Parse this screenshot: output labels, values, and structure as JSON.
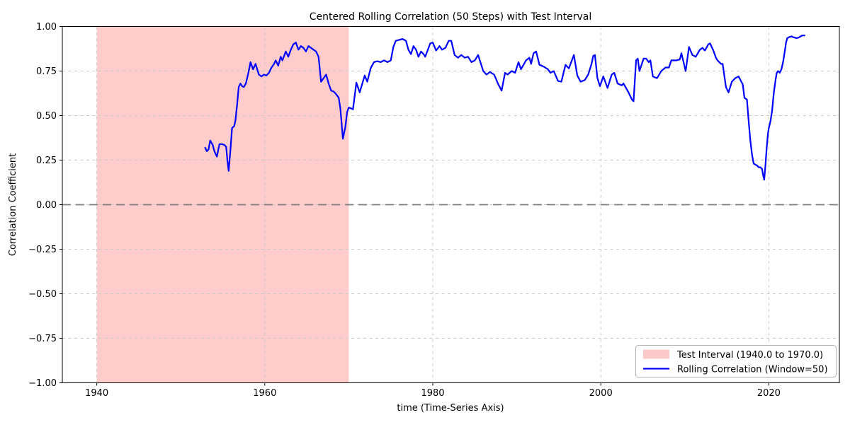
{
  "chart_data": {
    "type": "line",
    "title": "Centered Rolling Correlation (50 Steps) with Test Interval",
    "xlabel": "time (Time-Series Axis)",
    "ylabel": "Correlation Coefficient",
    "xlim": [
      1935.9,
      2028.4
    ],
    "ylim": [
      -1.0,
      1.0
    ],
    "xticks": [
      1940,
      1960,
      1980,
      2000,
      2020
    ],
    "xtick_labels": [
      "1940",
      "1960",
      "1980",
      "2000",
      "2020"
    ],
    "yticks": [
      1.0,
      0.75,
      0.5,
      0.25,
      0.0,
      -0.25,
      -0.5,
      -0.75,
      -1.0
    ],
    "ytick_labels": [
      "1.00",
      "0.75",
      "0.50",
      "0.25",
      "0.00",
      "−0.25",
      "−0.50",
      "−0.75",
      "−1.00"
    ],
    "grid": {
      "visible": true,
      "style": "dashed",
      "color": "#c9c9c9"
    },
    "zero_line": {
      "value": 0.0,
      "color": "#7f7f7f",
      "style": "dashed"
    },
    "test_interval_span": {
      "start": 1940.0,
      "end": 1970.0,
      "color": "#ff0000",
      "alpha": 0.2
    },
    "legend": {
      "position": "lower right",
      "entries": [
        {
          "label": "Test Interval (1940.0 to 1970.0)",
          "type": "patch",
          "color": "#fbc9c9"
        },
        {
          "label": "Rolling Correlation (Window=50)",
          "type": "line",
          "color": "#0000ff"
        }
      ]
    },
    "series": [
      {
        "name": "Rolling Correlation (Window=50)",
        "color": "#0000ff",
        "points": [
          [
            1952.9,
            0.32
          ],
          [
            1953.1,
            0.3
          ],
          [
            1953.3,
            0.31
          ],
          [
            1953.5,
            0.36
          ],
          [
            1953.8,
            0.335
          ],
          [
            1954.0,
            0.3
          ],
          [
            1954.3,
            0.27
          ],
          [
            1954.6,
            0.34
          ],
          [
            1954.9,
            0.34
          ],
          [
            1955.2,
            0.335
          ],
          [
            1955.4,
            0.325
          ],
          [
            1955.55,
            0.25
          ],
          [
            1955.7,
            0.19
          ],
          [
            1955.9,
            0.3
          ],
          [
            1956.1,
            0.43
          ],
          [
            1956.35,
            0.44
          ],
          [
            1956.5,
            0.47
          ],
          [
            1956.7,
            0.56
          ],
          [
            1956.9,
            0.66
          ],
          [
            1957.1,
            0.68
          ],
          [
            1957.3,
            0.665
          ],
          [
            1957.5,
            0.66
          ],
          [
            1957.75,
            0.68
          ],
          [
            1958.0,
            0.73
          ],
          [
            1958.3,
            0.8
          ],
          [
            1958.6,
            0.76
          ],
          [
            1958.9,
            0.79
          ],
          [
            1959.1,
            0.76
          ],
          [
            1959.3,
            0.73
          ],
          [
            1959.6,
            0.72
          ],
          [
            1959.9,
            0.73
          ],
          [
            1960.2,
            0.725
          ],
          [
            1960.5,
            0.74
          ],
          [
            1960.8,
            0.77
          ],
          [
            1961.1,
            0.79
          ],
          [
            1961.3,
            0.81
          ],
          [
            1961.6,
            0.78
          ],
          [
            1961.9,
            0.83
          ],
          [
            1962.1,
            0.81
          ],
          [
            1962.5,
            0.86
          ],
          [
            1962.8,
            0.83
          ],
          [
            1963.1,
            0.87
          ],
          [
            1963.4,
            0.9
          ],
          [
            1963.7,
            0.91
          ],
          [
            1964.0,
            0.87
          ],
          [
            1964.3,
            0.89
          ],
          [
            1964.6,
            0.88
          ],
          [
            1964.9,
            0.86
          ],
          [
            1965.2,
            0.89
          ],
          [
            1965.5,
            0.88
          ],
          [
            1965.8,
            0.87
          ],
          [
            1966.1,
            0.86
          ],
          [
            1966.4,
            0.83
          ],
          [
            1966.7,
            0.69
          ],
          [
            1967.0,
            0.71
          ],
          [
            1967.3,
            0.73
          ],
          [
            1967.6,
            0.68
          ],
          [
            1967.9,
            0.64
          ],
          [
            1968.2,
            0.635
          ],
          [
            1968.5,
            0.62
          ],
          [
            1968.8,
            0.6
          ],
          [
            1969.0,
            0.54
          ],
          [
            1969.3,
            0.37
          ],
          [
            1969.6,
            0.44
          ],
          [
            1969.8,
            0.52
          ],
          [
            1970.0,
            0.545
          ],
          [
            1970.3,
            0.54
          ],
          [
            1970.5,
            0.535
          ],
          [
            1970.9,
            0.685
          ],
          [
            1971.3,
            0.63
          ],
          [
            1971.9,
            0.725
          ],
          [
            1972.2,
            0.69
          ],
          [
            1972.6,
            0.765
          ],
          [
            1973.0,
            0.8
          ],
          [
            1973.4,
            0.805
          ],
          [
            1973.8,
            0.8
          ],
          [
            1974.2,
            0.81
          ],
          [
            1974.6,
            0.8
          ],
          [
            1975.0,
            0.81
          ],
          [
            1975.3,
            0.885
          ],
          [
            1975.6,
            0.92
          ],
          [
            1976.0,
            0.925
          ],
          [
            1976.4,
            0.93
          ],
          [
            1976.8,
            0.92
          ],
          [
            1977.1,
            0.87
          ],
          [
            1977.4,
            0.845
          ],
          [
            1977.7,
            0.89
          ],
          [
            1978.0,
            0.87
          ],
          [
            1978.3,
            0.83
          ],
          [
            1978.6,
            0.86
          ],
          [
            1978.9,
            0.845
          ],
          [
            1979.1,
            0.83
          ],
          [
            1979.7,
            0.905
          ],
          [
            1980.0,
            0.91
          ],
          [
            1980.4,
            0.865
          ],
          [
            1980.8,
            0.89
          ],
          [
            1981.1,
            0.87
          ],
          [
            1981.5,
            0.88
          ],
          [
            1981.9,
            0.92
          ],
          [
            1982.2,
            0.92
          ],
          [
            1982.6,
            0.84
          ],
          [
            1983.0,
            0.825
          ],
          [
            1983.4,
            0.84
          ],
          [
            1983.8,
            0.825
          ],
          [
            1984.2,
            0.83
          ],
          [
            1984.6,
            0.8
          ],
          [
            1985.0,
            0.81
          ],
          [
            1985.4,
            0.84
          ],
          [
            1986.0,
            0.75
          ],
          [
            1986.4,
            0.73
          ],
          [
            1986.8,
            0.745
          ],
          [
            1987.3,
            0.73
          ],
          [
            1987.8,
            0.675
          ],
          [
            1988.2,
            0.64
          ],
          [
            1988.6,
            0.74
          ],
          [
            1988.9,
            0.73
          ],
          [
            1989.4,
            0.75
          ],
          [
            1989.8,
            0.74
          ],
          [
            1990.2,
            0.8
          ],
          [
            1990.5,
            0.76
          ],
          [
            1991.1,
            0.81
          ],
          [
            1991.5,
            0.825
          ],
          [
            1991.7,
            0.79
          ],
          [
            1992.0,
            0.85
          ],
          [
            1992.3,
            0.86
          ],
          [
            1992.7,
            0.785
          ],
          [
            1993.2,
            0.775
          ],
          [
            1993.7,
            0.76
          ],
          [
            1994.0,
            0.74
          ],
          [
            1994.4,
            0.75
          ],
          [
            1994.9,
            0.695
          ],
          [
            1995.3,
            0.69
          ],
          [
            1995.8,
            0.785
          ],
          [
            1996.2,
            0.765
          ],
          [
            1996.8,
            0.84
          ],
          [
            1997.2,
            0.725
          ],
          [
            1997.6,
            0.69
          ],
          [
            1998.1,
            0.7
          ],
          [
            1998.5,
            0.73
          ],
          [
            1998.9,
            0.79
          ],
          [
            1999.1,
            0.835
          ],
          [
            1999.3,
            0.84
          ],
          [
            1999.6,
            0.71
          ],
          [
            1999.9,
            0.665
          ],
          [
            2000.3,
            0.72
          ],
          [
            2000.8,
            0.655
          ],
          [
            2001.3,
            0.73
          ],
          [
            2001.6,
            0.74
          ],
          [
            2002.0,
            0.68
          ],
          [
            2002.5,
            0.67
          ],
          [
            2002.7,
            0.68
          ],
          [
            2003.0,
            0.655
          ],
          [
            2003.3,
            0.63
          ],
          [
            2003.7,
            0.59
          ],
          [
            2003.9,
            0.58
          ],
          [
            2004.2,
            0.81
          ],
          [
            2004.4,
            0.82
          ],
          [
            2004.6,
            0.75
          ],
          [
            2005.1,
            0.82
          ],
          [
            2005.4,
            0.82
          ],
          [
            2005.7,
            0.8
          ],
          [
            2005.9,
            0.81
          ],
          [
            2006.2,
            0.72
          ],
          [
            2006.7,
            0.71
          ],
          [
            2007.2,
            0.75
          ],
          [
            2007.7,
            0.77
          ],
          [
            2008.1,
            0.77
          ],
          [
            2008.4,
            0.81
          ],
          [
            2009.0,
            0.81
          ],
          [
            2009.4,
            0.815
          ],
          [
            2009.6,
            0.85
          ],
          [
            2010.1,
            0.75
          ],
          [
            2010.5,
            0.885
          ],
          [
            2010.9,
            0.84
          ],
          [
            2011.3,
            0.83
          ],
          [
            2011.8,
            0.87
          ],
          [
            2012.1,
            0.88
          ],
          [
            2012.4,
            0.865
          ],
          [
            2012.8,
            0.9
          ],
          [
            2013.0,
            0.905
          ],
          [
            2013.4,
            0.865
          ],
          [
            2013.7,
            0.825
          ],
          [
            2013.9,
            0.81
          ],
          [
            2014.3,
            0.79
          ],
          [
            2014.5,
            0.79
          ],
          [
            2014.9,
            0.66
          ],
          [
            2015.2,
            0.63
          ],
          [
            2015.6,
            0.69
          ],
          [
            2016.0,
            0.71
          ],
          [
            2016.4,
            0.72
          ],
          [
            2016.9,
            0.675
          ],
          [
            2017.1,
            0.6
          ],
          [
            2017.4,
            0.59
          ],
          [
            2017.6,
            0.47
          ],
          [
            2017.8,
            0.36
          ],
          [
            2018.0,
            0.28
          ],
          [
            2018.2,
            0.23
          ],
          [
            2018.4,
            0.225
          ],
          [
            2018.6,
            0.22
          ],
          [
            2018.8,
            0.21
          ],
          [
            2019.0,
            0.21
          ],
          [
            2019.2,
            0.2
          ],
          [
            2019.3,
            0.17
          ],
          [
            2019.45,
            0.14
          ],
          [
            2019.6,
            0.22
          ],
          [
            2019.75,
            0.32
          ],
          [
            2019.9,
            0.4
          ],
          [
            2020.0,
            0.43
          ],
          [
            2020.2,
            0.47
          ],
          [
            2020.4,
            0.53
          ],
          [
            2020.6,
            0.63
          ],
          [
            2020.8,
            0.7
          ],
          [
            2020.95,
            0.74
          ],
          [
            2021.1,
            0.75
          ],
          [
            2021.3,
            0.74
          ],
          [
            2021.5,
            0.76
          ],
          [
            2021.7,
            0.8
          ],
          [
            2021.9,
            0.86
          ],
          [
            2022.05,
            0.91
          ],
          [
            2022.2,
            0.935
          ],
          [
            2022.4,
            0.94
          ],
          [
            2022.7,
            0.945
          ],
          [
            2022.9,
            0.94
          ],
          [
            2023.3,
            0.935
          ],
          [
            2023.5,
            0.937
          ],
          [
            2023.8,
            0.945
          ],
          [
            2024.0,
            0.95
          ],
          [
            2024.25,
            0.95
          ]
        ]
      }
    ]
  }
}
